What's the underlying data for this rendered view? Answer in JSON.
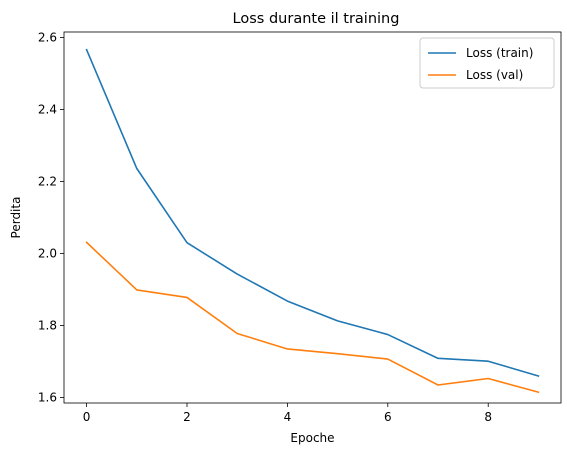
{
  "chart_data": {
    "type": "line",
    "title": "Loss durante il training",
    "xlabel": "Epoche",
    "ylabel": "Perdita",
    "xlim": [
      -0.45,
      9.45
    ],
    "ylim": [
      1.585,
      2.615
    ],
    "xticks": [
      0,
      2,
      4,
      6,
      8
    ],
    "xtick_labels": [
      "0",
      "2",
      "4",
      "6",
      "8"
    ],
    "yticks": [
      1.6,
      1.8,
      2.0,
      2.2,
      2.4,
      2.6
    ],
    "ytick_labels": [
      "1.6",
      "1.8",
      "2.0",
      "2.2",
      "2.4",
      "2.6"
    ],
    "grid": false,
    "legend_position": "top-right",
    "x": [
      0,
      1,
      2,
      3,
      4,
      5,
      6,
      7,
      8,
      9
    ],
    "series": [
      {
        "name": "Loss (train)",
        "color": "#1f77b4",
        "values": [
          2.566,
          2.236,
          2.03,
          1.943,
          1.868,
          1.813,
          1.775,
          1.709,
          1.701,
          1.66
        ]
      },
      {
        "name": "Loss (val)",
        "color": "#ff7f0e",
        "values": [
          2.031,
          1.899,
          1.878,
          1.778,
          1.735,
          1.722,
          1.707,
          1.635,
          1.653,
          1.615
        ]
      }
    ]
  }
}
